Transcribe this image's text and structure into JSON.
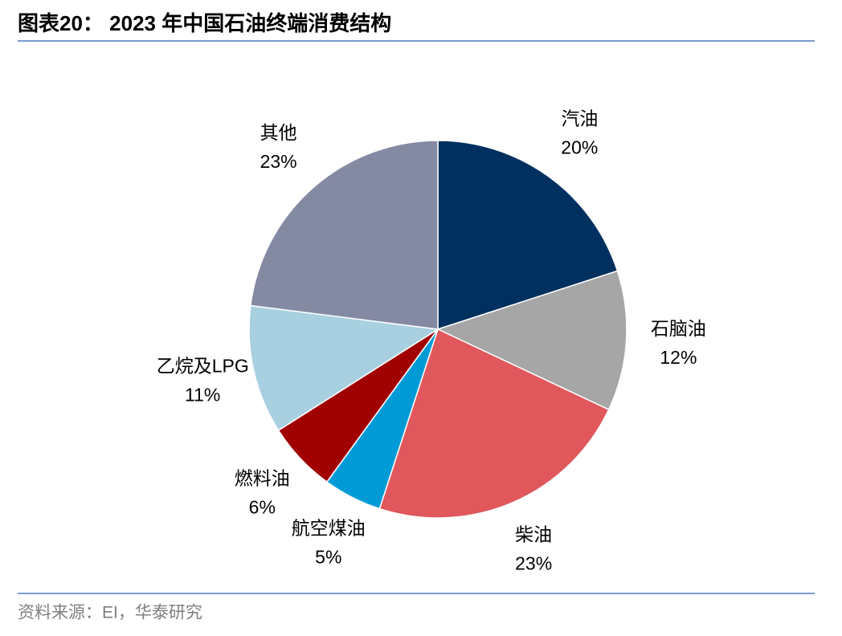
{
  "chart_data": {
    "type": "pie",
    "title": "图表20：  2023 年中国石油终端消费结构",
    "source": "资料来源：EI，华泰研究",
    "categories": [
      "汽油",
      "石脑油",
      "柴油",
      "航空煤油",
      "燃料油",
      "乙烷及LPG",
      "其他"
    ],
    "values": [
      20,
      12,
      23,
      5,
      6,
      11,
      23
    ],
    "value_labels": [
      "20%",
      "12%",
      "23%",
      "5%",
      "6%",
      "11%",
      "23%"
    ],
    "colors": [
      "#00305f",
      "#a6a6a6",
      "#e0575c",
      "#009ad6",
      "#a00000",
      "#a8d0e0",
      "#858aa3"
    ]
  }
}
